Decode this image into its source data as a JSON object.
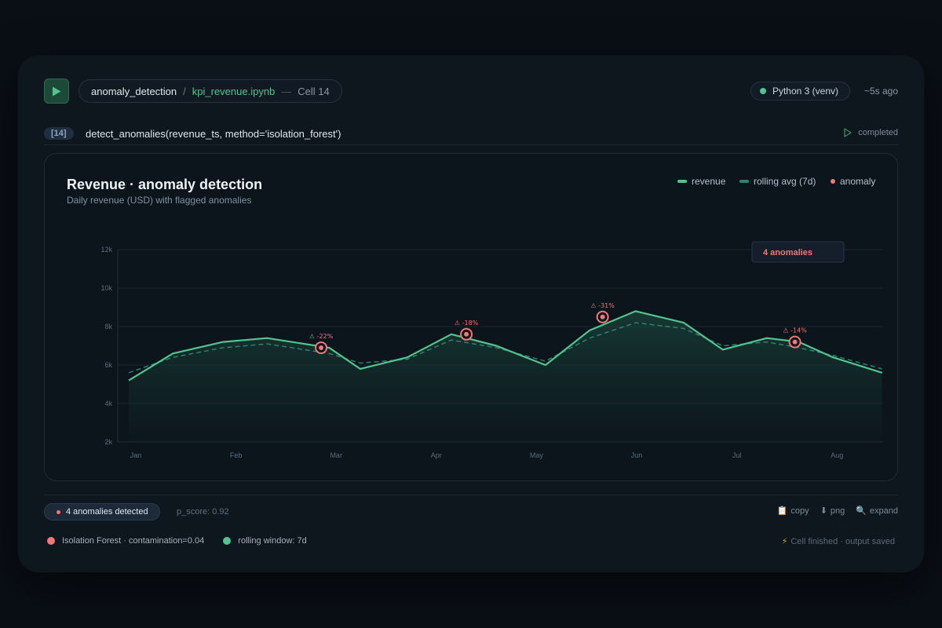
{
  "header": {
    "breadcrumb_folder": "anomaly_detection",
    "breadcrumb_sep": "/",
    "breadcrumb_file": "kpi_revenue.ipynb",
    "breadcrumb_dash": "—",
    "breadcrumb_cell": "Cell 14",
    "kernel": "Python 3 (venv)",
    "last_run": "~5s ago"
  },
  "cell": {
    "number": "[14]",
    "code": "detect_anomalies(revenue_ts, method='isolation_forest')",
    "status": "completed"
  },
  "chart_data": {
    "type": "line",
    "title": "Revenue · anomaly detection",
    "subtitle": "Daily revenue (USD) with flagged anomalies",
    "legend": [
      "revenue",
      "rolling avg (7d)",
      "anomaly"
    ],
    "legend_position": "top-right",
    "badge": "4 anomalies",
    "xlim": [
      0,
      7.45
    ],
    "ylim": [
      2000,
      12000
    ],
    "y_ticks": [
      2000,
      4000,
      6000,
      8000,
      10000,
      12000
    ],
    "y_tick_labels": [
      "2k",
      "4k",
      "6k",
      "8k",
      "10k",
      "12k"
    ],
    "x_ticks": [
      0,
      1,
      2,
      3,
      4,
      5,
      6,
      7
    ],
    "x_tick_labels": [
      "Jan",
      "Feb",
      "Mar",
      "Apr",
      "May",
      "Jun",
      "Jul",
      "Aug"
    ],
    "grid": true,
    "series": [
      {
        "name": "revenue",
        "x": [
          -0.07,
          0.37,
          0.87,
          1.31,
          1.93,
          2.24,
          2.71,
          3.15,
          3.6,
          4.09,
          4.53,
          4.99,
          5.47,
          5.86,
          6.3,
          6.62,
          6.96,
          7.45
        ],
        "values": [
          5200,
          6600,
          7200,
          7400,
          6900,
          5800,
          6400,
          7600,
          7000,
          6000,
          7800,
          8800,
          8200,
          6800,
          7400,
          7200,
          6400,
          5600
        ]
      },
      {
        "name": "rolling avg (7d)",
        "x": [
          -0.07,
          0.37,
          0.87,
          1.31,
          1.93,
          2.24,
          2.71,
          3.15,
          3.6,
          4.09,
          4.53,
          4.99,
          5.47,
          5.86,
          6.3,
          6.62,
          6.96,
          7.45
        ],
        "values": [
          5600,
          6400,
          6900,
          7100,
          6600,
          6100,
          6300,
          7300,
          6900,
          6200,
          7400,
          8200,
          7900,
          7000,
          7200,
          6900,
          6500,
          5800
        ]
      }
    ],
    "anomalies": [
      {
        "x": 1.85,
        "y": 6900,
        "label": "⚠ -22%"
      },
      {
        "x": 3.3,
        "y": 7600,
        "label": "⚠ -18%"
      },
      {
        "x": 4.66,
        "y": 8500,
        "label": "⚠ -31%"
      },
      {
        "x": 6.58,
        "y": 7200,
        "label": "⚠ -14%"
      }
    ],
    "colors": {
      "revenue": "#52c48c",
      "rolling": "#2f8070",
      "anomaly": "#f07878",
      "grid": "#1a2631",
      "tick": "#5c6d7d"
    }
  },
  "footer": {
    "anomaly_pill": "4 anomalies detected",
    "p_score": "p_score: 0.92",
    "actions": [
      {
        "icon": "📋",
        "label": "copy"
      },
      {
        "icon": "⬇",
        "label": "png"
      },
      {
        "icon": "🔍",
        "label": "expand"
      }
    ],
    "legend": [
      {
        "label": "Isolation Forest · contamination=0.04",
        "color": "#f07878"
      },
      {
        "label": "rolling window: 7d",
        "color": "#52c48c"
      }
    ],
    "note_icon": "⚡",
    "note": "Cell finished · output saved"
  },
  "colors": {
    "accent": "#52c48c",
    "danger": "#f07878",
    "window_bg": "#0e161e",
    "page_bg": "#0a0f16"
  }
}
